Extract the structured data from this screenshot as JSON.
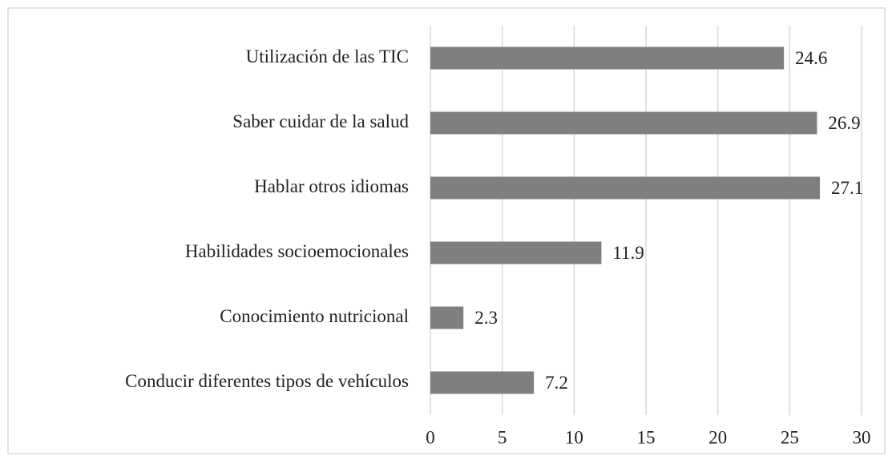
{
  "chart_data": {
    "type": "bar",
    "orientation": "horizontal",
    "categories": [
      "Utilización de las TIC",
      "Saber cuidar de la salud",
      "Hablar otros idiomas",
      "Habilidades socioemocionales",
      "Conocimiento nutricional",
      "Conducir diferentes tipos de vehículos"
    ],
    "values": [
      24.6,
      26.9,
      27.1,
      11.9,
      2.3,
      7.2
    ],
    "color": "#7f7f7f",
    "xlim": [
      0,
      30
    ],
    "xticks": [
      0,
      5,
      10,
      15,
      20,
      25,
      30
    ],
    "grid": true
  }
}
